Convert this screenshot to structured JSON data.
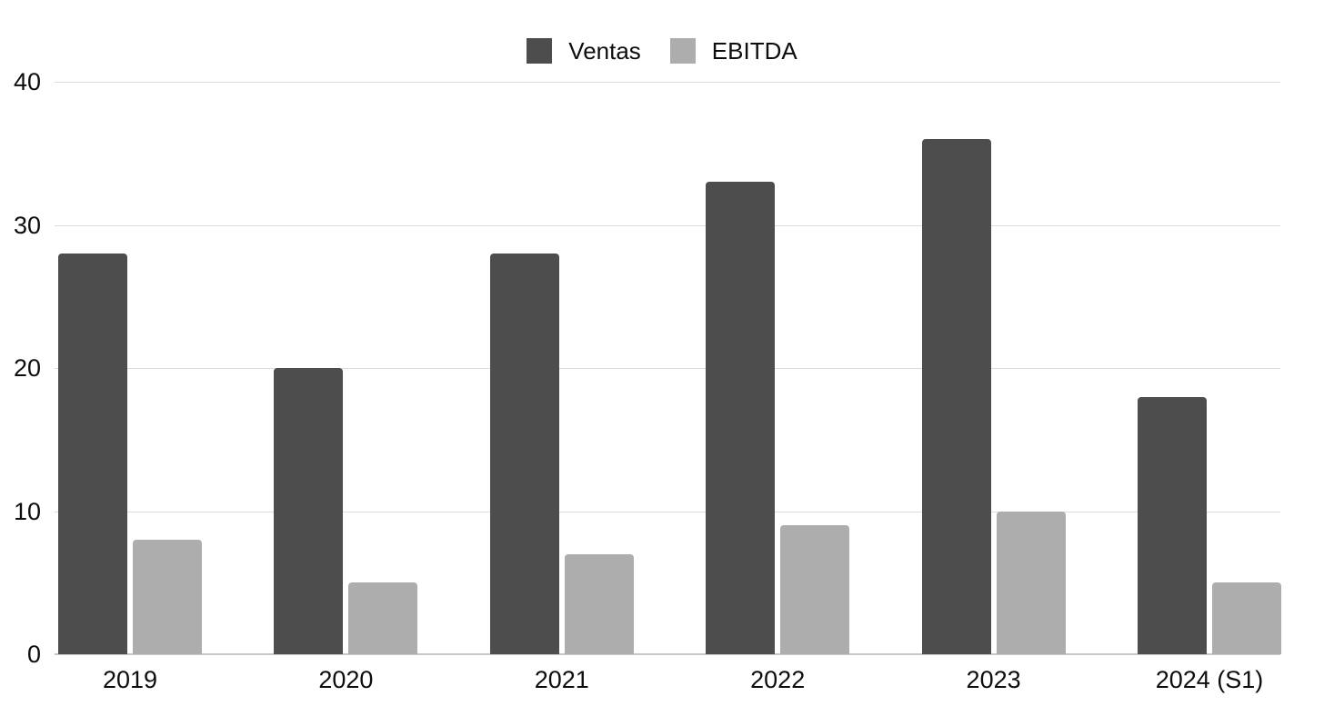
{
  "page": {
    "background": "#ffffff"
  },
  "chart_data": {
    "type": "bar",
    "title": "",
    "xlabel": "",
    "ylabel": "",
    "categories": [
      "2019",
      "2020",
      "2021",
      "2022",
      "2023",
      "2024 (S1)"
    ],
    "series": [
      {
        "name": "Ventas",
        "color": "#4d4d4d",
        "values": [
          28,
          20,
          28,
          33,
          36,
          18
        ]
      },
      {
        "name": "EBITDA",
        "color": "#adadad",
        "values": [
          8,
          5,
          7,
          9,
          10,
          5
        ]
      }
    ],
    "y_ticks": [
      "0",
      "10",
      "20",
      "30",
      "40"
    ],
    "ylim": [
      0,
      40
    ],
    "grid": true,
    "gridline_color": "#dcdcdc",
    "baseline_color": "#c7c7c7",
    "legend_position": "top-center",
    "background_color": "#ffffff",
    "text_color": "#0d0d0d"
  }
}
